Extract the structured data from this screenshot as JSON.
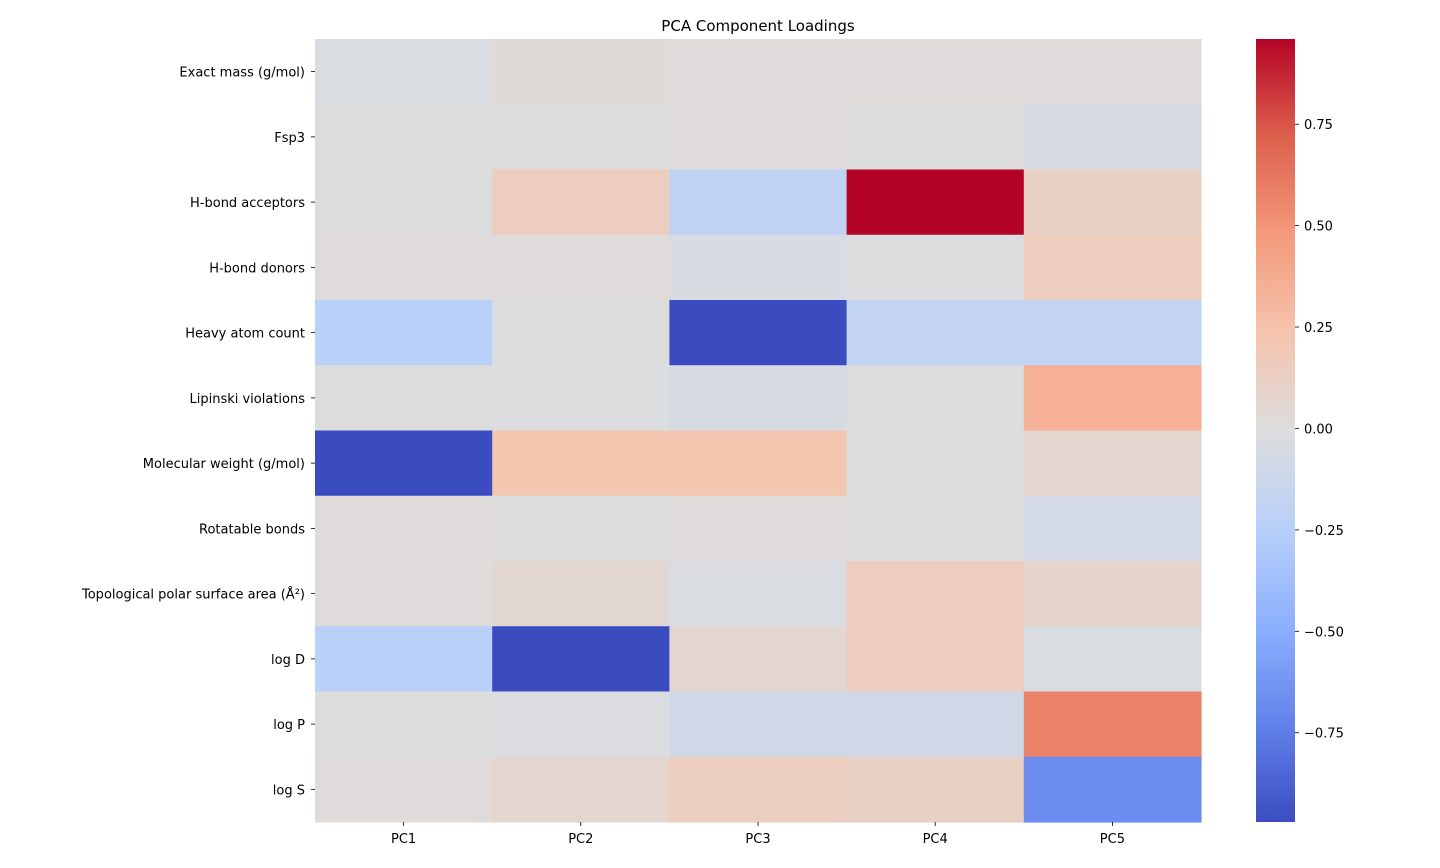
{
  "chart_data": {
    "type": "heatmap",
    "title": "PCA Component Loadings",
    "xlabel": "",
    "ylabel": "",
    "x_categories": [
      "PC1",
      "PC2",
      "PC3",
      "PC4",
      "PC5"
    ],
    "y_categories": [
      "Exact mass (g/mol)",
      "Fsp3",
      "H-bond acceptors",
      "H-bond donors",
      "Heavy atom count",
      "Lipinski violations",
      "Molecular weight (g/mol)",
      "Rotatable bonds",
      "Topological polar surface area (Å²)",
      "log D",
      "log P",
      "log S"
    ],
    "values": [
      [
        -0.03,
        0.02,
        0.01,
        0.01,
        0.01
      ],
      [
        0.0,
        0.0,
        0.01,
        0.0,
        -0.06
      ],
      [
        0.0,
        0.15,
        -0.2,
        0.96,
        0.12
      ],
      [
        0.01,
        0.01,
        -0.04,
        -0.01,
        0.15
      ],
      [
        -0.24,
        0.0,
        -0.97,
        -0.18,
        -0.18
      ],
      [
        0.0,
        -0.01,
        -0.05,
        0.0,
        0.35
      ],
      [
        -0.97,
        0.22,
        0.22,
        0.0,
        0.07
      ],
      [
        0.01,
        0.0,
        0.01,
        0.0,
        -0.07
      ],
      [
        0.01,
        0.05,
        -0.03,
        0.15,
        0.08
      ],
      [
        -0.24,
        -0.97,
        0.06,
        0.15,
        -0.03
      ],
      [
        0.0,
        -0.02,
        -0.09,
        -0.09,
        0.58
      ],
      [
        0.01,
        0.07,
        0.14,
        0.12,
        -0.67
      ]
    ],
    "colorbar": {
      "vmin": -0.97,
      "vmax": 0.96,
      "ticks": [
        0.75,
        0.5,
        0.25,
        0.0,
        -0.25,
        -0.5,
        -0.75
      ],
      "tick_labels": [
        "0.75",
        "0.50",
        "0.25",
        "0.00",
        "−0.25",
        "−0.50",
        "−0.75"
      ],
      "colormap": "coolwarm"
    },
    "grid": false
  }
}
